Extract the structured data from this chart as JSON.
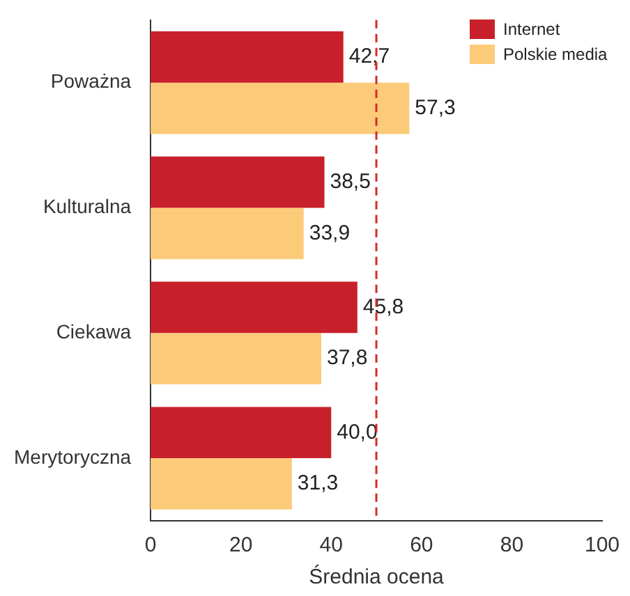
{
  "chart_data": {
    "type": "bar",
    "orientation": "horizontal",
    "xlabel": "Średnia ocena",
    "categories": [
      "Poważna",
      "Kulturalna",
      "Ciekawa",
      "Merytoryczna"
    ],
    "series": [
      {
        "name": "Internet",
        "color": "#c8202a",
        "values": [
          42.7,
          38.5,
          45.8,
          40.0
        ],
        "value_labels": [
          "42,7",
          "38,5",
          "45,8",
          "40,0"
        ]
      },
      {
        "name": "Polskie media",
        "color": "#fccb7a",
        "values": [
          57.3,
          33.9,
          37.8,
          31.3
        ],
        "value_labels": [
          "57,3",
          "33,9",
          "37,8",
          "31,3"
        ]
      }
    ],
    "xlim": [
      0,
      100
    ],
    "xticks": [
      0,
      20,
      40,
      60,
      80,
      100
    ],
    "grid": false,
    "legend": "top right",
    "ref_lines": [
      {
        "axis": "x",
        "value": 50,
        "color": "#d42a2a",
        "line_style": "dashed"
      }
    ]
  }
}
